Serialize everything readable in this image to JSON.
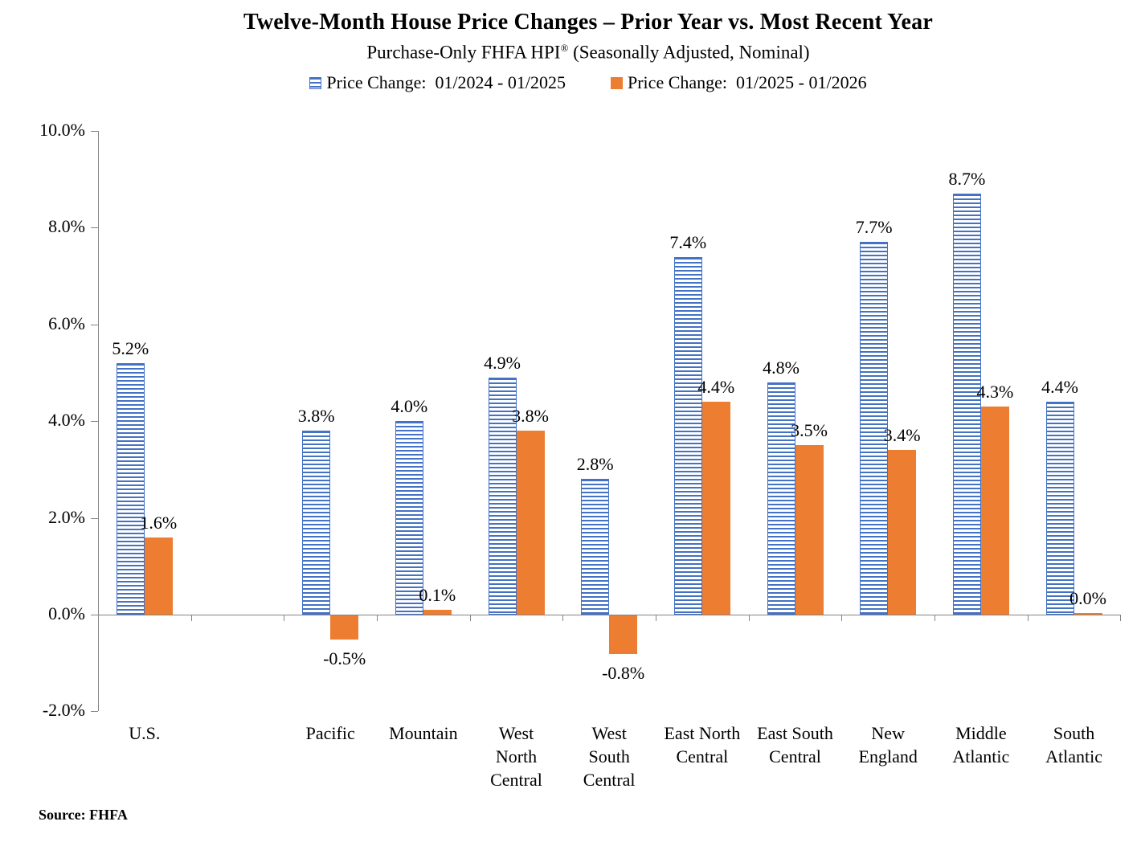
{
  "chart_data": {
    "type": "bar",
    "title": "Twelve-Month House Price Changes – Prior Year vs. Most Recent Year",
    "subtitle": "Purchase-Only FHFA HPI® (Seasonally Adjusted, Nominal)",
    "subtitle_parts": {
      "pre": "Purchase-Only FHFA HPI",
      "sup": "®",
      "post": " (Seasonally Adjusted, Nominal)"
    },
    "legend_position": "top",
    "grid": false,
    "ylim": [
      -2,
      10
    ],
    "ytick_step": 2,
    "ytick_labels": [
      "10.0%",
      "8.0%",
      "6.0%",
      "4.0%",
      "2.0%",
      "0.0%",
      "-2.0%"
    ],
    "categories": [
      {
        "label": "U.S.",
        "lines": [
          "U.S."
        ]
      },
      {
        "label": "",
        "lines": []
      },
      {
        "label": "Pacific",
        "lines": [
          "Pacific"
        ]
      },
      {
        "label": "Mountain",
        "lines": [
          "Mountain"
        ]
      },
      {
        "label": "West North Central",
        "lines": [
          "West",
          "North",
          "Central"
        ]
      },
      {
        "label": "West South Central",
        "lines": [
          "West",
          "South",
          "Central"
        ]
      },
      {
        "label": "East North Central",
        "lines": [
          "East North",
          "Central"
        ]
      },
      {
        "label": "East South Central",
        "lines": [
          "East South",
          "Central"
        ]
      },
      {
        "label": "New England",
        "lines": [
          "New",
          "England"
        ]
      },
      {
        "label": "Middle Atlantic",
        "lines": [
          "Middle",
          "Atlantic"
        ]
      },
      {
        "label": "South Atlantic",
        "lines": [
          "South",
          "Atlantic"
        ]
      }
    ],
    "series": [
      {
        "name": "Price Change:  01/2024 - 01/2025",
        "color": "#4472C4",
        "pattern": "horizontal-stripes",
        "values": [
          5.2,
          null,
          3.8,
          4.0,
          4.9,
          2.8,
          7.4,
          4.8,
          7.7,
          8.7,
          4.4
        ],
        "labels": [
          "5.2%",
          "",
          "3.8%",
          "4.0%",
          "4.9%",
          "2.8%",
          "7.4%",
          "4.8%",
          "7.7%",
          "8.7%",
          "4.4%"
        ]
      },
      {
        "name": "Price Change:  01/2025 - 01/2026",
        "color": "#ED7D31",
        "pattern": "solid",
        "values": [
          1.6,
          null,
          -0.5,
          0.1,
          3.8,
          -0.8,
          4.4,
          3.5,
          3.4,
          4.3,
          0.0
        ],
        "labels": [
          "1.6%",
          "",
          "-0.5%",
          "0.1%",
          "3.8%",
          "-0.8%",
          "4.4%",
          "3.5%",
          "3.4%",
          "4.3%",
          "0.0%"
        ]
      }
    ],
    "source": "Source: FHFA"
  },
  "colors": {
    "prior_blue": "#4472C4",
    "recent_orange": "#ED7D31",
    "axis_gray": "#848484"
  }
}
